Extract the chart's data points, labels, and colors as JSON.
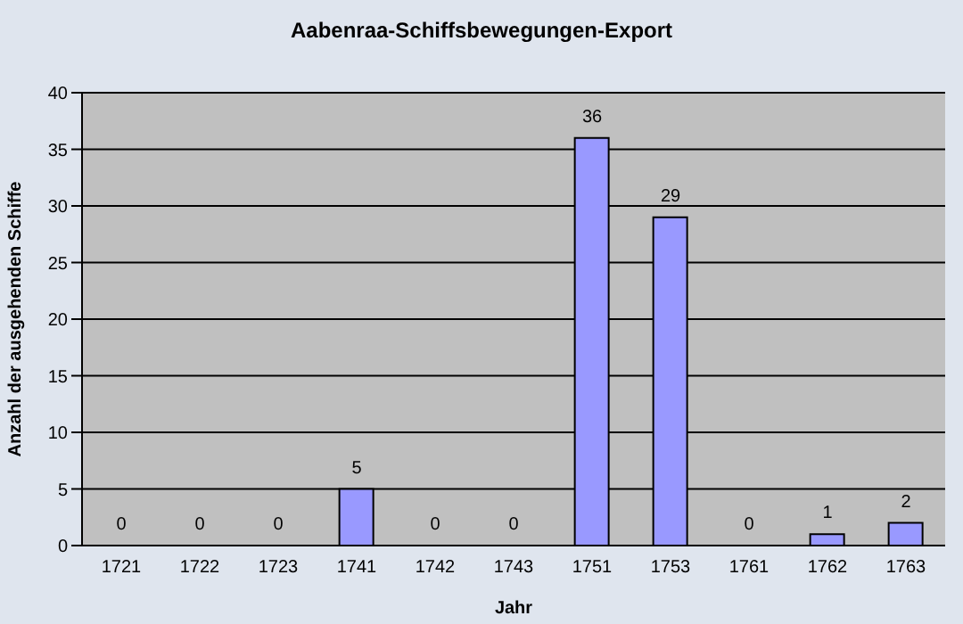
{
  "chart_data": {
    "type": "bar",
    "title": "Aabenraa-Schiffsbewegungen-Export",
    "xlabel": "Jahr",
    "ylabel": "Anzahl der ausgehenden Schiffe",
    "categories": [
      "1721",
      "1722",
      "1723",
      "1741",
      "1742",
      "1743",
      "1751",
      "1753",
      "1761",
      "1762",
      "1763"
    ],
    "values": [
      0,
      0,
      0,
      5,
      0,
      0,
      36,
      29,
      0,
      1,
      2
    ],
    "color": "#9999ff",
    "ylim": [
      0,
      40
    ],
    "yticks": [
      0,
      5,
      10,
      15,
      20,
      25,
      30,
      35,
      40
    ],
    "grid": "y",
    "data_labels": true
  }
}
